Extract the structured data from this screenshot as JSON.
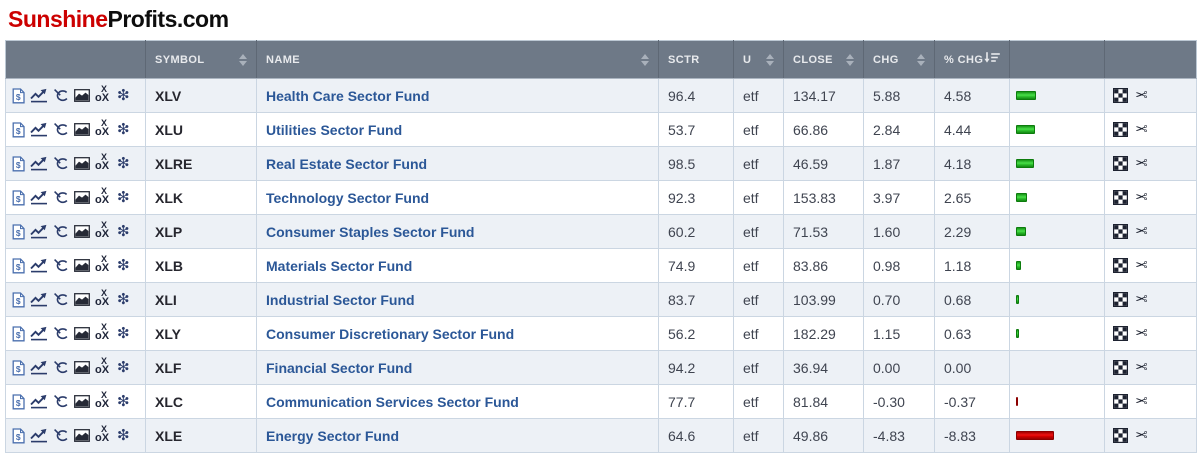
{
  "logo": {
    "part1": "Sunshine",
    "part2": "Profits.com"
  },
  "colors": {
    "logo_red": "#cc0000",
    "header_bg": "#6e7987",
    "row_alt_bg": "#edf1f6",
    "name_link": "#2b5797",
    "bar_positive": "#35cc35",
    "bar_negative": "#dd0000"
  },
  "table": {
    "columns": [
      {
        "label": "",
        "sort": "none"
      },
      {
        "label": "SYMBOL",
        "sort": "both"
      },
      {
        "label": "NAME",
        "sort": "both"
      },
      {
        "label": "SCTR",
        "sort": "none"
      },
      {
        "label": "U",
        "sort": "both"
      },
      {
        "label": "CLOSE",
        "sort": "both"
      },
      {
        "label": "CHG",
        "sort": "both"
      },
      {
        "label": "% CHG",
        "sort": "desc-active"
      },
      {
        "label": "",
        "sort": "none"
      },
      {
        "label": "",
        "sort": "none"
      }
    ],
    "row_tool_icons": [
      "summary-doc-dollar",
      "sharpchart-line",
      "annotate-lasso",
      "area-chart",
      "pnf-chart-ox",
      "snowflake"
    ],
    "row_action_icons": [
      "candleglance-grid",
      "scissors"
    ],
    "rows": [
      {
        "symbol": "XLV",
        "name": "Health Care Sector Fund",
        "sctr": "96.4",
        "u": "etf",
        "close": "134.17",
        "chg": "5.88",
        "pct_chg": "4.58",
        "pct_value": 4.58
      },
      {
        "symbol": "XLU",
        "name": "Utilities Sector Fund",
        "sctr": "53.7",
        "u": "etf",
        "close": "66.86",
        "chg": "2.84",
        "pct_chg": "4.44",
        "pct_value": 4.44
      },
      {
        "symbol": "XLRE",
        "name": "Real Estate Sector Fund",
        "sctr": "98.5",
        "u": "etf",
        "close": "46.59",
        "chg": "1.87",
        "pct_chg": "4.18",
        "pct_value": 4.18
      },
      {
        "symbol": "XLK",
        "name": "Technology Sector Fund",
        "sctr": "92.3",
        "u": "etf",
        "close": "153.83",
        "chg": "3.97",
        "pct_chg": "2.65",
        "pct_value": 2.65
      },
      {
        "symbol": "XLP",
        "name": "Consumer Staples Sector Fund",
        "sctr": "60.2",
        "u": "etf",
        "close": "71.53",
        "chg": "1.60",
        "pct_chg": "2.29",
        "pct_value": 2.29
      },
      {
        "symbol": "XLB",
        "name": "Materials Sector Fund",
        "sctr": "74.9",
        "u": "etf",
        "close": "83.86",
        "chg": "0.98",
        "pct_chg": "1.18",
        "pct_value": 1.18
      },
      {
        "symbol": "XLI",
        "name": "Industrial Sector Fund",
        "sctr": "83.7",
        "u": "etf",
        "close": "103.99",
        "chg": "0.70",
        "pct_chg": "0.68",
        "pct_value": 0.68
      },
      {
        "symbol": "XLY",
        "name": "Consumer Discretionary Sector Fund",
        "sctr": "56.2",
        "u": "etf",
        "close": "182.29",
        "chg": "1.15",
        "pct_chg": "0.63",
        "pct_value": 0.63
      },
      {
        "symbol": "XLF",
        "name": "Financial Sector Fund",
        "sctr": "94.2",
        "u": "etf",
        "close": "36.94",
        "chg": "0.00",
        "pct_chg": "0.00",
        "pct_value": 0
      },
      {
        "symbol": "XLC",
        "name": "Communication Services Sector Fund",
        "sctr": "77.7",
        "u": "etf",
        "close": "81.84",
        "chg": "-0.30",
        "pct_chg": "-0.37",
        "pct_value": -0.37
      },
      {
        "symbol": "XLE",
        "name": "Energy Sector Fund",
        "sctr": "64.6",
        "u": "etf",
        "close": "49.86",
        "chg": "-4.83",
        "pct_chg": "-8.83",
        "pct_value": -8.83
      }
    ]
  }
}
